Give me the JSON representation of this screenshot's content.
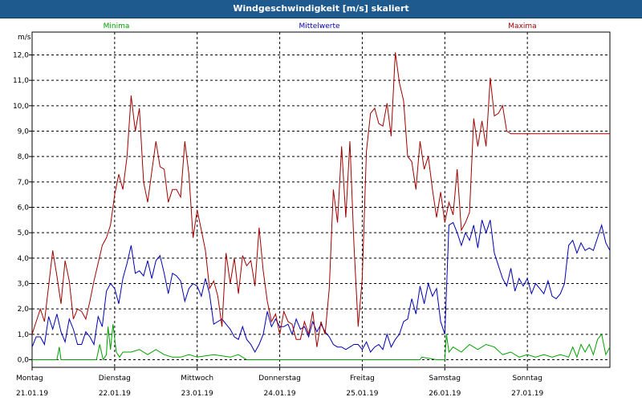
{
  "title": "Windgeschwindigkeit [m/s] skaliert",
  "chart_data": {
    "type": "line",
    "ylabel": "m/s",
    "ylim": [
      -0.3,
      12.9
    ],
    "y_ticks": [
      0.0,
      1.0,
      2.0,
      3.0,
      4.0,
      5.0,
      6.0,
      7.0,
      8.0,
      9.0,
      10.0,
      11.0,
      12.0
    ],
    "y_tick_labels": [
      "0,0",
      "1,0",
      "2,0",
      "3,0",
      "4,0",
      "5,0",
      "6,0",
      "7,0",
      "8,0",
      "9,0",
      "10,0",
      "11,0",
      "12,0"
    ],
    "xlim": [
      0,
      7.0
    ],
    "grid": true,
    "days": [
      {
        "name": "Montag",
        "date": "21.01.19"
      },
      {
        "name": "Dienstag",
        "date": "22.01.19"
      },
      {
        "name": "Mittwoch",
        "date": "23.01.19"
      },
      {
        "name": "Donnerstag",
        "date": "24.01.19"
      },
      {
        "name": "Freitag",
        "date": "25.01.19"
      },
      {
        "name": "Samstag",
        "date": "26.01.19"
      },
      {
        "name": "Sonntag",
        "date": "27.01.19"
      }
    ],
    "series": [
      {
        "name": "Minima",
        "color": "#00a000",
        "x": [
          0.0,
          0.3,
          0.33,
          0.35,
          0.6,
          0.78,
          0.82,
          0.86,
          0.9,
          0.92,
          0.95,
          0.98,
          1.02,
          1.06,
          1.1,
          1.2,
          1.3,
          1.4,
          1.5,
          1.6,
          1.7,
          1.8,
          1.9,
          2.0,
          2.2,
          2.4,
          2.5,
          2.6,
          2.7,
          2.8,
          3.0,
          3.5,
          4.0,
          4.5,
          4.7,
          4.72,
          4.9,
          4.95,
          5.0,
          5.02,
          5.05,
          5.1,
          5.2,
          5.3,
          5.4,
          5.5,
          5.6,
          5.7,
          5.8,
          5.9,
          6.0,
          6.1,
          6.2,
          6.3,
          6.4,
          6.5,
          6.55,
          6.6,
          6.65,
          6.7,
          6.75,
          6.8,
          6.85,
          6.9,
          6.95,
          7.0
        ],
        "y": [
          0.0,
          0.0,
          0.5,
          0.0,
          0.0,
          0.0,
          0.6,
          0.0,
          0.2,
          1.3,
          0.4,
          1.4,
          0.3,
          0.1,
          0.3,
          0.3,
          0.4,
          0.2,
          0.4,
          0.2,
          0.1,
          0.1,
          0.2,
          0.1,
          0.2,
          0.1,
          0.2,
          0.0,
          0.0,
          0.0,
          0.0,
          0.0,
          0.0,
          0.0,
          0.0,
          0.1,
          0.0,
          0.0,
          0.0,
          1.0,
          0.3,
          0.5,
          0.3,
          0.6,
          0.4,
          0.6,
          0.5,
          0.2,
          0.3,
          0.1,
          0.2,
          0.1,
          0.2,
          0.1,
          0.2,
          0.1,
          0.5,
          0.1,
          0.6,
          0.3,
          0.6,
          0.2,
          0.8,
          1.0,
          0.2,
          0.5
        ]
      },
      {
        "name": "Mittelwerte",
        "color": "#0000b4",
        "x": [
          0.0,
          0.05,
          0.1,
          0.15,
          0.2,
          0.25,
          0.3,
          0.35,
          0.4,
          0.45,
          0.5,
          0.55,
          0.6,
          0.65,
          0.7,
          0.75,
          0.8,
          0.85,
          0.9,
          0.95,
          1.0,
          1.05,
          1.1,
          1.15,
          1.2,
          1.25,
          1.3,
          1.35,
          1.4,
          1.45,
          1.5,
          1.55,
          1.6,
          1.65,
          1.7,
          1.75,
          1.8,
          1.85,
          1.9,
          1.95,
          2.0,
          2.05,
          2.1,
          2.15,
          2.2,
          2.25,
          2.3,
          2.35,
          2.4,
          2.45,
          2.5,
          2.55,
          2.6,
          2.65,
          2.7,
          2.75,
          2.8,
          2.85,
          2.9,
          2.95,
          3.0,
          3.05,
          3.1,
          3.15,
          3.2,
          3.25,
          3.3,
          3.35,
          3.4,
          3.45,
          3.5,
          3.55,
          3.6,
          3.65,
          3.7,
          3.75,
          3.8,
          3.85,
          3.9,
          3.95,
          4.0,
          4.05,
          4.1,
          4.15,
          4.2,
          4.25,
          4.3,
          4.35,
          4.4,
          4.45,
          4.5,
          4.55,
          4.6,
          4.65,
          4.7,
          4.75,
          4.8,
          4.85,
          4.9,
          4.95,
          5.0,
          5.05,
          5.1,
          5.15,
          5.2,
          5.25,
          5.3,
          5.35,
          5.4,
          5.45,
          5.5,
          5.55,
          5.6,
          5.65,
          5.7,
          5.75,
          5.8,
          5.85,
          5.9,
          5.95,
          6.0,
          6.05,
          6.1,
          6.15,
          6.2,
          6.25,
          6.3,
          6.35,
          6.4,
          6.45,
          6.5,
          6.55,
          6.6,
          6.65,
          6.7,
          6.75,
          6.8,
          6.85,
          6.9,
          6.95,
          7.0
        ],
        "y": [
          0.5,
          0.9,
          0.9,
          0.6,
          1.7,
          1.2,
          1.8,
          1.1,
          0.7,
          1.6,
          1.2,
          0.6,
          0.6,
          1.1,
          0.9,
          0.6,
          1.7,
          1.3,
          2.7,
          3.0,
          2.8,
          2.2,
          3.2,
          3.8,
          4.5,
          3.4,
          3.5,
          3.3,
          3.9,
          3.2,
          3.9,
          4.1,
          3.4,
          2.6,
          3.4,
          3.3,
          3.1,
          2.3,
          2.8,
          3.0,
          2.9,
          2.5,
          3.2,
          2.6,
          1.4,
          1.5,
          1.6,
          1.4,
          1.2,
          0.9,
          0.8,
          1.3,
          0.8,
          0.6,
          0.3,
          0.6,
          1.0,
          1.9,
          1.3,
          1.6,
          1.3,
          1.3,
          1.4,
          1.0,
          1.6,
          1.2,
          1.3,
          0.9,
          1.5,
          1.1,
          1.4,
          1.1,
          0.9,
          0.6,
          0.5,
          0.5,
          0.4,
          0.5,
          0.6,
          0.6,
          0.4,
          0.7,
          0.3,
          0.5,
          0.6,
          0.4,
          1.0,
          0.5,
          0.8,
          1.0,
          1.5,
          1.6,
          2.4,
          1.8,
          2.9,
          2.2,
          3.0,
          2.5,
          2.8,
          1.5,
          1.0,
          5.3,
          5.4,
          5.0,
          4.5,
          5.0,
          4.7,
          5.3,
          4.4,
          5.5,
          5.0,
          5.5,
          4.2,
          3.7,
          3.2,
          2.9,
          3.6,
          2.7,
          3.2,
          2.9,
          3.2,
          2.6,
          3.0,
          2.8,
          2.6,
          3.1,
          2.5,
          2.4,
          2.6,
          3.0,
          4.5,
          4.7,
          4.2,
          4.6,
          4.3,
          4.4,
          4.3,
          4.8,
          5.3,
          4.6,
          4.3
        ],
        "anchors": []
      },
      {
        "name": "Maxima",
        "color": "#a00000",
        "x": [
          0.0,
          0.05,
          0.1,
          0.15,
          0.2,
          0.25,
          0.3,
          0.35,
          0.4,
          0.45,
          0.5,
          0.55,
          0.6,
          0.65,
          0.7,
          0.75,
          0.8,
          0.85,
          0.9,
          0.95,
          1.0,
          1.05,
          1.1,
          1.15,
          1.2,
          1.25,
          1.3,
          1.35,
          1.4,
          1.45,
          1.5,
          1.55,
          1.6,
          1.65,
          1.7,
          1.75,
          1.8,
          1.85,
          1.9,
          1.95,
          2.0,
          2.05,
          2.1,
          2.15,
          2.2,
          2.25,
          2.3,
          2.35,
          2.4,
          2.45,
          2.5,
          2.55,
          2.6,
          2.65,
          2.7,
          2.75,
          2.8,
          2.85,
          2.9,
          2.95,
          3.0,
          3.05,
          3.1,
          3.15,
          3.2,
          3.25,
          3.3,
          3.35,
          3.4,
          3.45,
          3.5,
          3.55,
          3.6,
          3.65,
          3.7,
          3.75,
          3.8,
          3.85,
          3.9,
          3.95,
          4.0,
          4.05,
          4.1,
          4.15,
          4.2,
          4.25,
          4.3,
          4.35,
          4.4,
          4.45,
          4.5,
          4.55,
          4.6,
          4.65,
          4.7,
          4.75,
          4.8,
          4.85,
          4.9,
          4.95,
          5.0,
          5.05,
          5.1,
          5.15,
          5.2,
          5.25,
          5.3,
          5.35,
          5.4,
          5.45,
          5.5,
          5.55,
          5.6,
          5.65,
          5.7,
          5.75,
          5.8,
          5.85,
          5.9,
          5.95,
          6.0,
          6.05,
          6.1,
          6.15,
          6.2,
          6.25,
          6.3,
          6.35,
          6.4,
          6.45,
          6.5,
          6.55,
          6.6,
          6.65,
          6.7,
          6.75,
          6.8,
          6.85,
          6.9,
          6.95,
          7.0
        ],
        "y": [
          1.0,
          1.5,
          2.0,
          1.5,
          2.9,
          4.3,
          3.3,
          2.2,
          3.9,
          3.1,
          1.6,
          2.0,
          1.9,
          1.6,
          2.3,
          3.1,
          3.8,
          4.5,
          4.8,
          5.3,
          6.5,
          7.3,
          6.7,
          8.0,
          10.4,
          9.0,
          9.9,
          7.0,
          6.2,
          7.4,
          8.6,
          7.6,
          7.5,
          6.2,
          6.7,
          6.7,
          6.4,
          8.6,
          7.3,
          4.8,
          5.9,
          5.1,
          4.3,
          2.8,
          3.1,
          2.5,
          1.3,
          4.2,
          3.0,
          4.0,
          2.6,
          4.1,
          3.7,
          3.9,
          2.9,
          5.2,
          3.5,
          2.3,
          1.5,
          1.8,
          1.0,
          1.9,
          1.5,
          1.4,
          0.8,
          0.8,
          1.5,
          1.0,
          1.9,
          0.5,
          1.5,
          1.0,
          2.8,
          6.7,
          5.4,
          8.4,
          5.6,
          8.6,
          4.5,
          1.3,
          3.2,
          8.2,
          9.7,
          9.9,
          9.3,
          9.2,
          10.1,
          8.8,
          12.1,
          10.9,
          10.2,
          8.0,
          7.8,
          6.7,
          8.6,
          7.5,
          8.0,
          6.7,
          5.6,
          6.6,
          5.4,
          6.2,
          5.7,
          7.5,
          5.1,
          5.4,
          5.8,
          9.5,
          8.4,
          9.4,
          8.4,
          11.1,
          9.6,
          9.7,
          10.0,
          9.0,
          8.9,
          8.9,
          8.9,
          8.9,
          8.9,
          8.9,
          8.9,
          8.9,
          8.9,
          8.9,
          8.9,
          8.9,
          8.9,
          8.9,
          8.9,
          8.9,
          8.9,
          8.9,
          8.9,
          8.9,
          8.9,
          8.9,
          8.9,
          8.9,
          8.9
        ]
      }
    ]
  }
}
